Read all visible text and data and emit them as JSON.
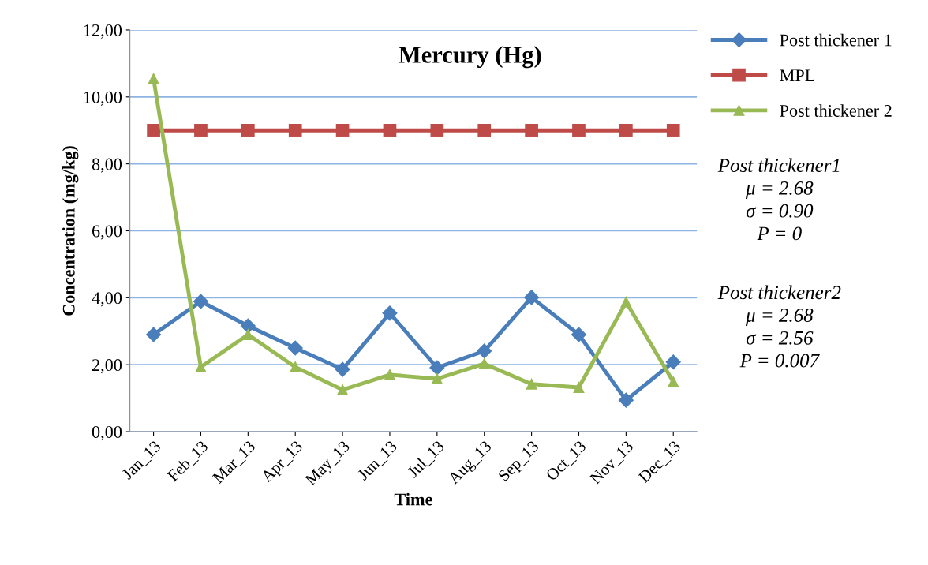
{
  "chart_data": {
    "type": "line",
    "title": "Mercury (Hg)",
    "xlabel": "Time",
    "ylabel": "Concentration (mg/kg)",
    "categories": [
      "Jan_13",
      "Feb_13",
      "Mar_13",
      "Apr_13",
      "May_13",
      "Jun_13",
      "Jul_13",
      "Aug_13",
      "Sep_13",
      "Oct_13",
      "Nov_13",
      "Dec_13"
    ],
    "series": [
      {
        "name": "Post thickener 1",
        "color": "#4a7ebb",
        "marker": "diamond",
        "values": [
          2.9,
          3.89,
          3.16,
          2.5,
          1.86,
          3.54,
          1.91,
          2.41,
          4.01,
          2.9,
          0.94,
          2.08
        ]
      },
      {
        "name": "MPL",
        "color": "#be4b48",
        "marker": "square",
        "values": [
          9,
          9,
          9,
          9,
          9,
          9,
          9,
          9,
          9,
          9,
          9,
          9
        ]
      },
      {
        "name": "Post thickener 2",
        "color": "#98b954",
        "marker": "triangle",
        "values": [
          10.54,
          1.93,
          2.9,
          1.93,
          1.25,
          1.7,
          1.58,
          2.03,
          1.42,
          1.32,
          3.87,
          1.49
        ]
      }
    ],
    "ylim": [
      0,
      12
    ],
    "yticks": [
      {
        "value": 0,
        "label": "0,00"
      },
      {
        "value": 2,
        "label": "2,00"
      },
      {
        "value": 4,
        "label": "4,00"
      },
      {
        "value": 6,
        "label": "6,00"
      },
      {
        "value": 8,
        "label": "8,00"
      },
      {
        "value": 10,
        "label": "10,00"
      },
      {
        "value": 12,
        "label": "12,00"
      }
    ],
    "grid": "y",
    "legend": "top right",
    "line_style": "solid",
    "annotations": [
      "Post thickener1\nμ = 2.68\nσ = 0.90\nP = 0",
      "Post thickener2\nμ = 2.68\nσ = 2.56\nP = 0.007"
    ]
  }
}
